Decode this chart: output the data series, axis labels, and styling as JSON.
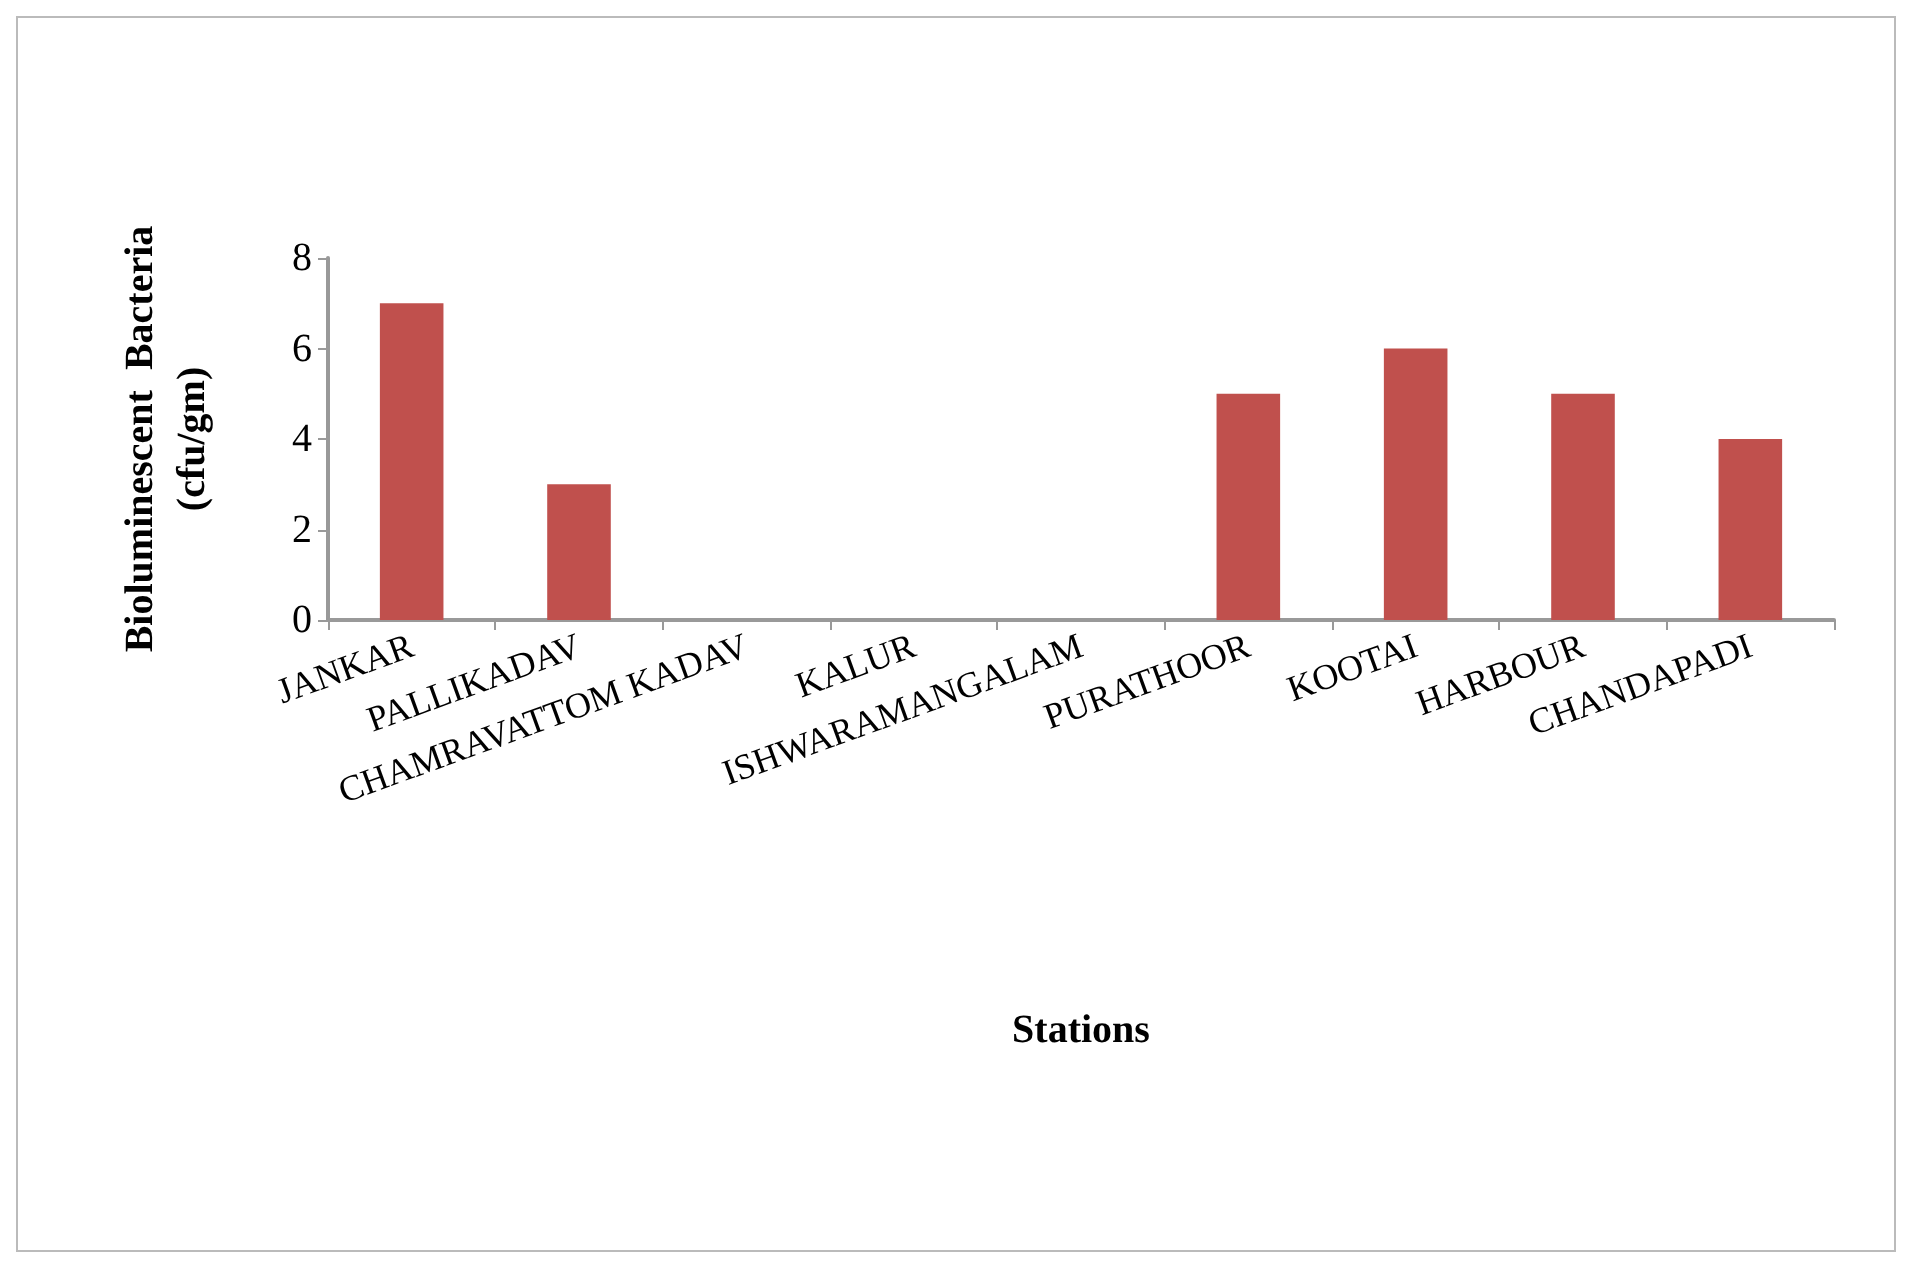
{
  "chart_data": {
    "type": "bar",
    "xlabel": "Stations",
    "ylabel": "Bioluminescent  Bacteria\n(cfu/gm)",
    "categories": [
      "JANKAR",
      "PALLIKADAV",
      "CHAMRAVATTOM KADAV",
      "KALUR",
      "ISHWARAMANGALAM",
      "PURATHOOR",
      "KOOTAI",
      "HARBOUR",
      "CHANDAPADI"
    ],
    "values": [
      7,
      3,
      0,
      0,
      0,
      5,
      6,
      5,
      4
    ],
    "color": "#c0504d",
    "ylim": [
      0,
      8
    ],
    "yticks": [
      0,
      2,
      4,
      6,
      8
    ]
  }
}
